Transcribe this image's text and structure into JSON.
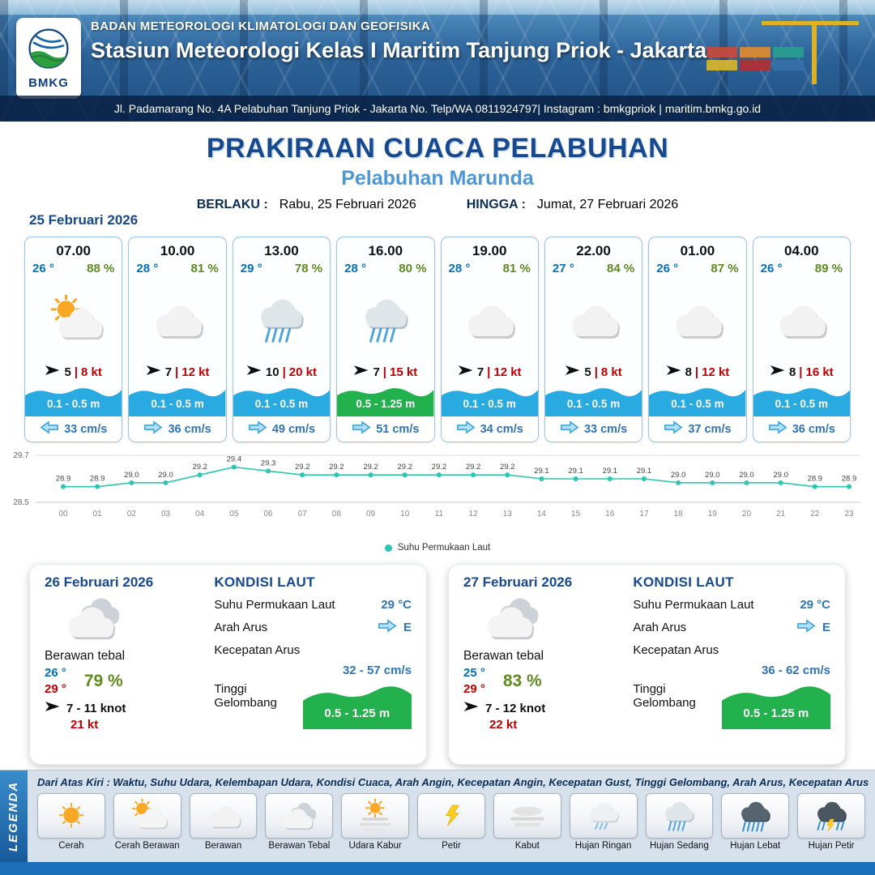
{
  "header": {
    "logo_text": "BMKG",
    "org": "BADAN METEOROLOGI KLIMATOLOGI DAN GEOFISIKA",
    "station": "Stasiun Meteorologi Kelas I Maritim Tanjung Priok - Jakarta",
    "address": "Jl. Padamarang No. 4A Pelabuhan Tanjung Priok - Jakarta No. Telp/WA 0811924797| Instagram : bmkgpriok | maritim.bmkg.go.id"
  },
  "title": {
    "main": "PRAKIRAAN CUACA PELABUHAN",
    "subtitle": "Pelabuhan Marunda",
    "berlaku_label": "BERLAKU :",
    "berlaku_value": "Rabu, 25 Februari 2026",
    "hingga_label": "HINGGA :",
    "hingga_value": "Jumat, 27 Februari 2026"
  },
  "day1": {
    "date": "25 Februari 2026",
    "cards": [
      {
        "time": "07.00",
        "temp": "26 °",
        "rh": "88 %",
        "icon": "cerah-berawan",
        "wind_speed": "5",
        "gust": "8 kt",
        "wave": "0.1 - 0.5 m",
        "wave_color": "#29abe2",
        "current_dir": "left",
        "current": "33 cm/s"
      },
      {
        "time": "10.00",
        "temp": "28 °",
        "rh": "81 %",
        "icon": "berawan",
        "wind_speed": "7",
        "gust": "12 kt",
        "wave": "0.1 - 0.5 m",
        "wave_color": "#29abe2",
        "current_dir": "right",
        "current": "36 cm/s"
      },
      {
        "time": "13.00",
        "temp": "29 °",
        "rh": "78 %",
        "icon": "hujan-sedang",
        "wind_speed": "10",
        "gust": "20 kt",
        "wave": "0.1 - 0.5 m",
        "wave_color": "#29abe2",
        "current_dir": "right",
        "current": "49 cm/s"
      },
      {
        "time": "16.00",
        "temp": "28 °",
        "rh": "80 %",
        "icon": "hujan-sedang",
        "wind_speed": "7",
        "gust": "15 kt",
        "wave": "0.5 - 1.25 m",
        "wave_color": "#22b14c",
        "current_dir": "right",
        "current": "51 cm/s"
      },
      {
        "time": "19.00",
        "temp": "28 °",
        "rh": "81 %",
        "icon": "berawan",
        "wind_speed": "7",
        "gust": "12 kt",
        "wave": "0.1 - 0.5 m",
        "wave_color": "#29abe2",
        "current_dir": "right",
        "current": "34 cm/s"
      },
      {
        "time": "22.00",
        "temp": "27 °",
        "rh": "84 %",
        "icon": "berawan",
        "wind_speed": "5",
        "gust": "8 kt",
        "wave": "0.1 - 0.5 m",
        "wave_color": "#29abe2",
        "current_dir": "right",
        "current": "33 cm/s"
      },
      {
        "time": "01.00",
        "temp": "26 °",
        "rh": "87 %",
        "icon": "berawan",
        "wind_speed": "8",
        "gust": "12 kt",
        "wave": "0.1 - 0.5 m",
        "wave_color": "#29abe2",
        "current_dir": "right",
        "current": "37 cm/s"
      },
      {
        "time": "04.00",
        "temp": "26 °",
        "rh": "89 %",
        "icon": "berawan",
        "wind_speed": "8",
        "gust": "16 kt",
        "wave": "0.1 - 0.5 m",
        "wave_color": "#29abe2",
        "current_dir": "right",
        "current": "36 cm/s"
      }
    ]
  },
  "chart_data": {
    "type": "line",
    "legend": "Suhu Permukaan Laut",
    "x": [
      "00",
      "01",
      "02",
      "03",
      "04",
      "05",
      "06",
      "07",
      "08",
      "09",
      "10",
      "11",
      "12",
      "13",
      "14",
      "15",
      "16",
      "17",
      "18",
      "19",
      "20",
      "21",
      "22",
      "23"
    ],
    "values": [
      28.9,
      28.9,
      29.0,
      29.0,
      29.2,
      29.4,
      29.3,
      29.2,
      29.2,
      29.2,
      29.2,
      29.2,
      29.2,
      29.2,
      29.1,
      29.1,
      29.1,
      29.1,
      29.0,
      29.0,
      29.0,
      29.0,
      28.9,
      28.9
    ],
    "ylim": [
      28.5,
      29.7
    ],
    "line_color": "#2cc5b2",
    "grid": true,
    "legend_position": "bottom"
  },
  "outlook": [
    {
      "date": "26 Februari 2026",
      "icon": "berawan-tebal",
      "condition": "Berawan tebal",
      "temp_min": "26 °",
      "temp_max": "29 °",
      "rh": "79 %",
      "wind": "7 - 11 knot",
      "gust": "21 kt",
      "sea": {
        "title": "KONDISI LAUT",
        "sst_label": "Suhu Permukaan Laut",
        "sst": "29 °C",
        "arah_label": "Arah Arus",
        "arah": "E",
        "kec_label": "Kecepatan Arus",
        "kec": "32 - 57 cm/s",
        "gel_label": "Tinggi Gelombang",
        "gel": "0.5 - 1.25 m"
      }
    },
    {
      "date": "27 Februari 2026",
      "icon": "berawan-tebal",
      "condition": "Berawan tebal",
      "temp_min": "25 °",
      "temp_max": "29 °",
      "rh": "83 %",
      "wind": "7 - 12 knot",
      "gust": "22 kt",
      "sea": {
        "title": "KONDISI LAUT",
        "sst_label": "Suhu Permukaan Laut",
        "sst": "29 °C",
        "arah_label": "Arah Arus",
        "arah": "E",
        "kec_label": "Kecepatan Arus",
        "kec": "36 - 62 cm/s",
        "gel_label": "Tinggi Gelombang",
        "gel": "0.5 - 1.25 m"
      }
    }
  ],
  "legend": {
    "label": "LEGENDA",
    "description": "Dari Atas Kiri : Waktu, Suhu Udara, Kelembapan Udara, Kondisi Cuaca, Arah Angin, Kecepatan Angin, Kecepatan Gust, Tinggi Gelombang, Arah Arus, Kecepatan Arus",
    "items": [
      {
        "icon": "cerah",
        "label": "Cerah"
      },
      {
        "icon": "cerah-berawan",
        "label": "Cerah Berawan"
      },
      {
        "icon": "berawan",
        "label": "Berawan"
      },
      {
        "icon": "berawan-tebal",
        "label": "Berawan Tebal"
      },
      {
        "icon": "udara-kabur",
        "label": "Udara Kabur"
      },
      {
        "icon": "petir",
        "label": "Petir"
      },
      {
        "icon": "kabut",
        "label": "Kabut"
      },
      {
        "icon": "hujan-ringan",
        "label": "Hujan Ringan"
      },
      {
        "icon": "hujan-sedang",
        "label": "Hujan Sedang"
      },
      {
        "icon": "hujan-lebat",
        "label": "Hujan Lebat"
      },
      {
        "icon": "hujan-petir",
        "label": "Hujan Petir"
      }
    ]
  }
}
